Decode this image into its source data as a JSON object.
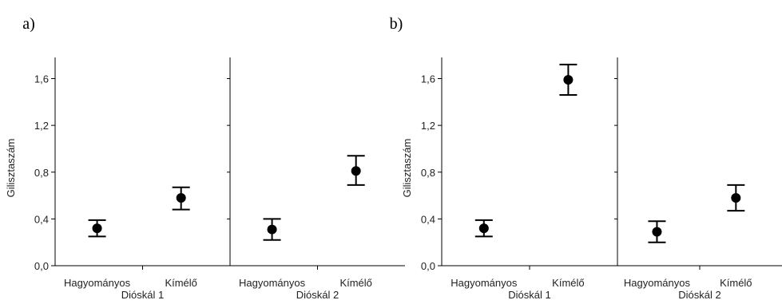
{
  "chart_data": [
    {
      "type": "scatter",
      "panel_label": "a)",
      "ylabel": "Gilisztaszám",
      "ylim": [
        0,
        1.8
      ],
      "yticks": [
        "0,0",
        "0,4",
        "0,8",
        "1,2",
        "1,6"
      ],
      "error_bars": true,
      "groups": [
        {
          "name": "Dióskál 1",
          "categories": [
            "Hagyományos",
            "Kímélő"
          ],
          "values": [
            0.32,
            0.58
          ],
          "lower": [
            0.25,
            0.48
          ],
          "upper": [
            0.39,
            0.67
          ]
        },
        {
          "name": "Dióskál 2",
          "categories": [
            "Hagyományos",
            "Kímélő"
          ],
          "values": [
            0.31,
            0.81
          ],
          "lower": [
            0.22,
            0.69
          ],
          "upper": [
            0.4,
            0.94
          ]
        }
      ]
    },
    {
      "type": "scatter",
      "panel_label": "b)",
      "ylabel": "Gilisztaszám",
      "ylim": [
        0,
        1.8
      ],
      "yticks": [
        "0,0",
        "0,4",
        "0,8",
        "1,2",
        "1,6"
      ],
      "error_bars": true,
      "groups": [
        {
          "name": "Dióskál 1",
          "categories": [
            "Hagyományos",
            "Kímélő"
          ],
          "values": [
            0.32,
            1.59
          ],
          "lower": [
            0.25,
            1.46
          ],
          "upper": [
            0.39,
            1.72
          ]
        },
        {
          "name": "Dióskál 2",
          "categories": [
            "Hagyományos",
            "Kímélő"
          ],
          "values": [
            0.29,
            0.58
          ],
          "lower": [
            0.2,
            0.47
          ],
          "upper": [
            0.38,
            0.69
          ]
        }
      ]
    }
  ]
}
